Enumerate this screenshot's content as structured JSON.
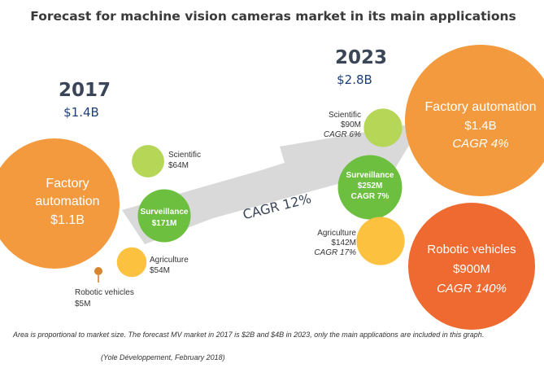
{
  "title": "Forecast for machine vision cameras market in its main applications",
  "arrow_label": "CAGR 12%",
  "footnote": "Area is proportional to market size. The forecast MV market in 2017 is $2B and $4B in 2023, only the main applications are included in this graph.",
  "source": "(Yole Développement, February 2018)",
  "colors": {
    "factory": "#f39a3e",
    "scientific": "#b5d657",
    "surveillance": "#6cbf3f",
    "agriculture": "#fcc13f",
    "robotic_2017": "#d9852f",
    "robotic_2023": "#ee6a30",
    "arrow": "#d9d9d9"
  },
  "chart_data": {
    "type": "bubble",
    "groups": [
      {
        "year": "2017",
        "total": "$1.4B",
        "segments": [
          {
            "key": "factory",
            "name": "Factory automation",
            "value_label": "$1.1B",
            "value_musd": 1100
          },
          {
            "key": "scientific",
            "name": "Scientific",
            "value_label": "$64M",
            "value_musd": 64
          },
          {
            "key": "surveillance",
            "name": "Surveillance",
            "value_label": "$171M",
            "value_musd": 171
          },
          {
            "key": "agriculture",
            "name": "Agriculture",
            "value_label": "$54M",
            "value_musd": 54
          },
          {
            "key": "robotic",
            "name": "Robotic vehicles",
            "value_label": "$5M",
            "value_musd": 5
          }
        ]
      },
      {
        "year": "2023",
        "total": "$2.8B",
        "segments": [
          {
            "key": "factory",
            "name": "Factory automation",
            "value_label": "$1.4B",
            "value_musd": 1400,
            "cagr": "CAGR 4%"
          },
          {
            "key": "scientific",
            "name": "Scientific",
            "value_label": "$90M",
            "value_musd": 90,
            "cagr": "CAGR 6%"
          },
          {
            "key": "surveillance",
            "name": "Surveillance",
            "value_label": "$252M",
            "value_musd": 252,
            "cagr": "CAGR 7%"
          },
          {
            "key": "agriculture",
            "name": "Agriculture",
            "value_label": "$142M",
            "value_musd": 142,
            "cagr": "CAGR 17%"
          },
          {
            "key": "robotic",
            "name": "Robotic vehicles",
            "value_label": "$900M",
            "value_musd": 900,
            "cagr": "CAGR 140%"
          }
        ]
      }
    ]
  }
}
